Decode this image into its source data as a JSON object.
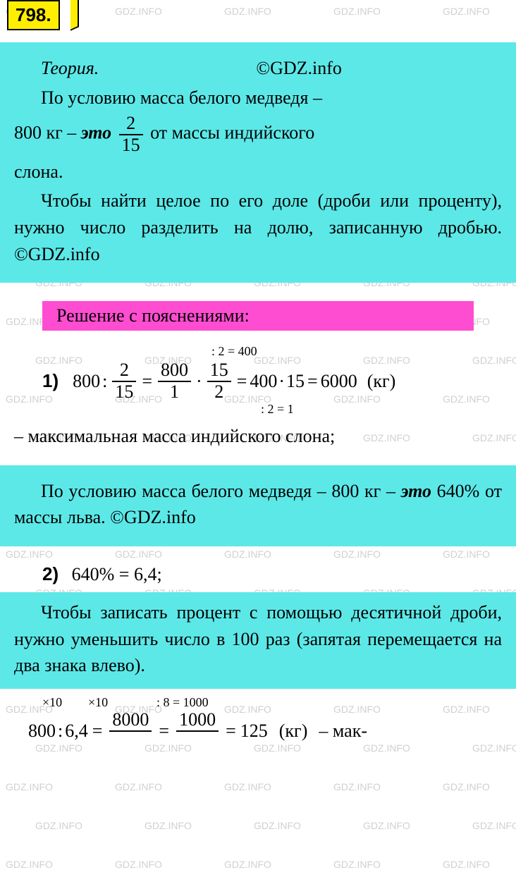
{
  "watermark_text": "GDZ.INFO",
  "watermark_color": "#d0d0d0",
  "badge": {
    "number": "798.",
    "bg_color": "#ffee00",
    "border_color": "#000000"
  },
  "colors": {
    "theory_bg": "#5de8e8",
    "solution_header_bg": "#ff4dd2",
    "text": "#000000"
  },
  "theory1": {
    "title": "Теория.",
    "copyright": "©GDZ.info",
    "line1_a": "По условию масса белого медведя –",
    "line2_a": "800 кг – ",
    "line2_b": "это",
    "frac_num": "2",
    "frac_den": "15",
    "line2_c": " от массы индийского",
    "line3": "слона.",
    "para2_a": "Чтобы найти целое по его доле (дроби или проценту), нужно число разделить на долю, записанную дробью. ©GDZ.info"
  },
  "solution_header": "Решение с пояснениями:",
  "eq1": {
    "label": "1)",
    "v800": "800",
    "colon": ":",
    "f1_num": "2",
    "f1_den": "15",
    "eq": "=",
    "f2_num": "800",
    "f2_den": "1",
    "dot": "·",
    "f3_num": "15",
    "f3_den": "2",
    "res1": "400",
    "res2": "15",
    "final": "6000",
    "unit": "(кг)",
    "annot_top": ": 2 = 400",
    "annot_bot": ": 2 = 1",
    "conclusion": "– максимальная масса индийского слона;"
  },
  "theory2": {
    "line1": "По условию масса белого медведя – 800 кг – ",
    "line1_b": "это",
    "line1_c": " 640% от массы льва. ©GDZ.info"
  },
  "eq2": {
    "label": "2)",
    "text": "640% = 6,4;"
  },
  "theory3": {
    "text": "Чтобы записать процент с помощью десятичной дроби, нужно уменьшить число в 100 раз (запятая перемещается на два знака влево)."
  },
  "eq3": {
    "v800": "800",
    "colon": ":",
    "v64": "6,4",
    "eq": "=",
    "f1_num": "8000",
    "f1_den": "",
    "f2_num": "1000",
    "f2_den": "",
    "final": "125",
    "unit": "(кг)",
    "suffix": "– мак-",
    "annot_top1": "×10",
    "annot_top2": "×10",
    "annot_top3": ": 8 = 1000"
  }
}
